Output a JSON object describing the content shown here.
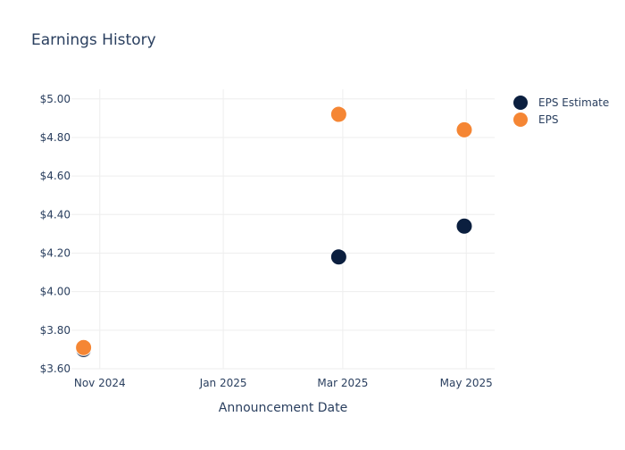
{
  "chart_data": {
    "type": "scatter",
    "title": "Earnings History",
    "xlabel": "Announcement Date",
    "ylabel": "",
    "x_ticks": [
      {
        "date": "2024-11-01",
        "label": "Nov 2024"
      },
      {
        "date": "2025-01-01",
        "label": "Jan 2025"
      },
      {
        "date": "2025-03-01",
        "label": "Mar 2025"
      },
      {
        "date": "2025-05-01",
        "label": "May 2025"
      }
    ],
    "xlim": [
      "2024-10-18",
      "2025-05-15"
    ],
    "y_ticks": [
      3.6,
      3.8,
      4.0,
      4.2,
      4.4,
      4.6,
      4.8,
      5.0
    ],
    "y_tick_labels": [
      "$3.60",
      "$3.80",
      "$4.00",
      "$4.20",
      "$4.40",
      "$4.60",
      "$4.80",
      "$5.00"
    ],
    "ylim": [
      3.6,
      5.05
    ],
    "grid": true,
    "legend_position": "top-right",
    "series": [
      {
        "name": "EPS Estimate",
        "color": "#0b1f3f",
        "points": [
          {
            "x": "2024-10-24",
            "y": 3.7
          },
          {
            "x": "2025-02-27",
            "y": 4.18
          },
          {
            "x": "2025-04-30",
            "y": 4.34
          }
        ]
      },
      {
        "name": "EPS",
        "color": "#f58634",
        "points": [
          {
            "x": "2024-10-24",
            "y": 3.71
          },
          {
            "x": "2025-02-27",
            "y": 4.92
          },
          {
            "x": "2025-04-30",
            "y": 4.84
          }
        ]
      }
    ]
  }
}
